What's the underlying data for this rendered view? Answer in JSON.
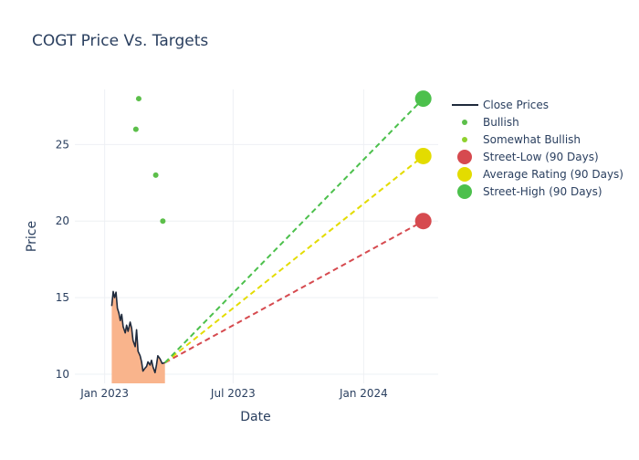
{
  "chart_data": {
    "type": "line",
    "title": "COGT Price Vs. Targets",
    "xlabel": "Date",
    "ylabel": "Price",
    "x_axis": {
      "type": "date",
      "range": [
        "2022-11-20",
        "2024-04-15"
      ],
      "ticks": [
        {
          "date": "2023-01-01",
          "label": "Jan 2023"
        },
        {
          "date": "2023-07-01",
          "label": "Jul 2023"
        },
        {
          "date": "2024-01-01",
          "label": "Jan 2024"
        }
      ]
    },
    "y_axis": {
      "range": [
        9.4,
        28.6
      ],
      "ticks": [
        10,
        15,
        20,
        25
      ]
    },
    "grid": true,
    "legend_position": "right",
    "colors": {
      "close": "#1f2a3c",
      "fill": "#f9b48c",
      "bullish": "#5cbf4a",
      "somewhat_bullish": "#8fd12e",
      "street_low": "#d64a4f",
      "average": "#e3dc00",
      "street_high": "#4cc04c",
      "grid": "#eef0f4",
      "text": "#2a3f5f"
    },
    "series": [
      {
        "name": "Close Prices",
        "kind": "line",
        "points": [
          [
            "2023-01-11",
            14.45
          ],
          [
            "2023-01-13",
            15.4
          ],
          [
            "2023-01-15",
            15.0
          ],
          [
            "2023-01-17",
            15.35
          ],
          [
            "2023-01-19",
            14.3
          ],
          [
            "2023-01-21",
            14.0
          ],
          [
            "2023-01-23",
            13.5
          ],
          [
            "2023-01-25",
            13.9
          ],
          [
            "2023-01-27",
            13.1
          ],
          [
            "2023-01-30",
            12.7
          ],
          [
            "2023-02-01",
            13.2
          ],
          [
            "2023-02-03",
            12.8
          ],
          [
            "2023-02-06",
            13.4
          ],
          [
            "2023-02-08",
            13.0
          ],
          [
            "2023-02-10",
            12.2
          ],
          [
            "2023-02-13",
            11.8
          ],
          [
            "2023-02-15",
            12.9
          ],
          [
            "2023-02-17",
            11.5
          ],
          [
            "2023-02-20",
            11.2
          ],
          [
            "2023-02-22",
            10.8
          ],
          [
            "2023-02-24",
            10.2
          ],
          [
            "2023-02-27",
            10.4
          ],
          [
            "2023-03-01",
            10.5
          ],
          [
            "2023-03-03",
            10.8
          ],
          [
            "2023-03-06",
            10.6
          ],
          [
            "2023-03-08",
            10.9
          ],
          [
            "2023-03-10",
            10.5
          ],
          [
            "2023-03-13",
            10.1
          ],
          [
            "2023-03-15",
            10.6
          ],
          [
            "2023-03-17",
            11.2
          ],
          [
            "2023-03-20",
            11.0
          ],
          [
            "2023-03-23",
            10.7
          ],
          [
            "2023-03-27",
            10.75
          ]
        ]
      },
      {
        "name": "Bullish",
        "kind": "markers",
        "points": [
          [
            "2023-02-14",
            26.0
          ],
          [
            "2023-02-18",
            28.0
          ],
          [
            "2023-03-14",
            23.0
          ],
          [
            "2023-03-24",
            20.0
          ]
        ]
      },
      {
        "name": "Somewhat Bullish",
        "kind": "markers",
        "points": []
      },
      {
        "name": "Street-Low (90 Days)",
        "kind": "target",
        "start": [
          "2023-03-27",
          10.75
        ],
        "end": [
          "2024-03-25",
          20.0
        ]
      },
      {
        "name": "Average Rating (90 Days)",
        "kind": "target",
        "start": [
          "2023-03-27",
          10.75
        ],
        "end": [
          "2024-03-25",
          24.25
        ]
      },
      {
        "name": "Street-High (90 Days)",
        "kind": "target",
        "start": [
          "2023-03-27",
          10.75
        ],
        "end": [
          "2024-03-25",
          28.0
        ]
      }
    ]
  }
}
